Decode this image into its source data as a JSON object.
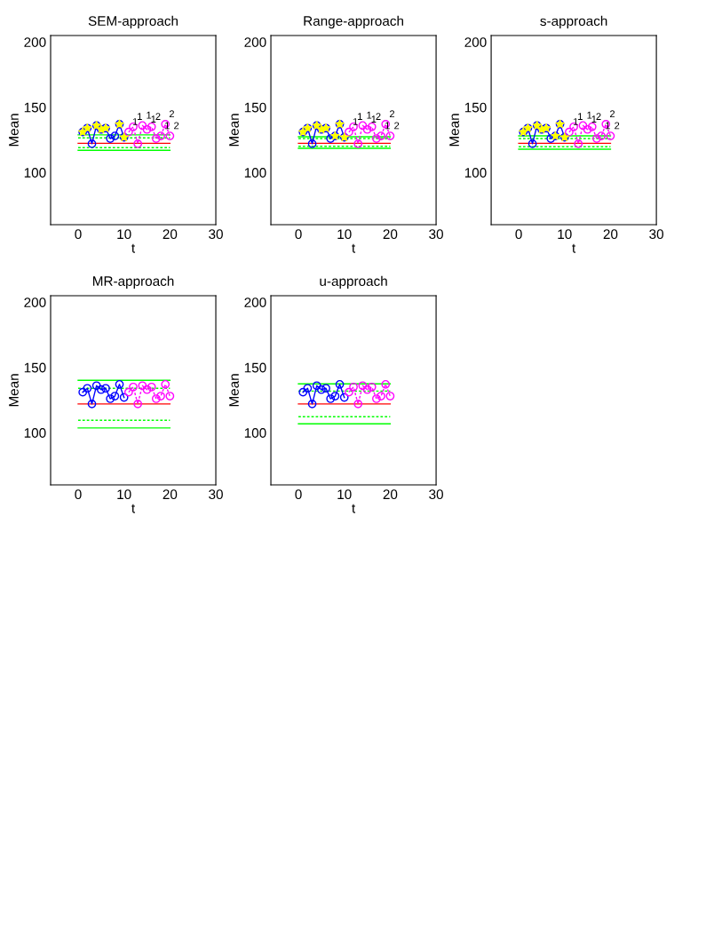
{
  "chart_data": [
    {
      "type": "line",
      "title": "SEM-approach",
      "xlabel": "t",
      "ylabel": "Mean",
      "xlim": [
        -6,
        30
      ],
      "ylim": [
        60,
        205
      ],
      "xticks": [
        0,
        10,
        20,
        30
      ],
      "yticks": [
        100,
        150,
        200
      ],
      "grid": false,
      "legend": false,
      "series": [
        {
          "color": "#00ff00",
          "x": [
            0,
            20
          ],
          "values": [
            128.8,
            128.8
          ],
          "line_style": "solid",
          "marker": "none"
        },
        {
          "color": "#00ff00",
          "x": [
            0,
            20
          ],
          "values": [
            126.5,
            126.5
          ],
          "line_style": "dashed",
          "marker": "none"
        },
        {
          "color": "#ff0000",
          "x": [
            0,
            20
          ],
          "values": [
            122.4,
            122.4
          ],
          "line_style": "solid",
          "marker": "none"
        },
        {
          "color": "#00ff00",
          "x": [
            0,
            20
          ],
          "values": [
            119,
            119
          ],
          "line_style": "dashed",
          "marker": "none"
        },
        {
          "color": "#00ff00",
          "x": [
            0,
            20
          ],
          "values": [
            117,
            117
          ],
          "line_style": "solid",
          "marker": "none"
        },
        {
          "color": "#0000ff",
          "x": [
            1,
            2,
            3,
            4,
            5,
            6,
            7,
            8,
            9,
            10
          ],
          "values": [
            131,
            134,
            122,
            136,
            133,
            134,
            126,
            128,
            137,
            127
          ],
          "line_style": "solid",
          "marker": "circle"
        },
        {
          "color": "#ff00ff",
          "x": [
            11,
            12,
            13,
            14,
            15,
            16,
            17,
            18,
            19,
            20
          ],
          "values": [
            131,
            135,
            122,
            136,
            133,
            135,
            126,
            128,
            137,
            128
          ],
          "line_style": "dashed",
          "marker": "circle"
        },
        {
          "type": "scatter",
          "color": "#ffff00",
          "x": [
            1,
            2,
            4,
            5,
            6,
            9,
            10
          ],
          "values": [
            131,
            134,
            136,
            133,
            134,
            137,
            127
          ],
          "marker": "star"
        }
      ],
      "annotations": [
        {
          "text": "1",
          "x": 11,
          "y": 131
        },
        {
          "text": "1",
          "x": 12,
          "y": 135
        },
        {
          "text": "1",
          "x": 14,
          "y": 136
        },
        {
          "text": "1",
          "x": 15,
          "y": 133
        },
        {
          "text": "2",
          "x": 16,
          "y": 135
        },
        {
          "text": "1",
          "x": 18,
          "y": 128
        },
        {
          "text": "2",
          "x": 19,
          "y": 137
        },
        {
          "text": "2",
          "x": 20,
          "y": 128
        }
      ]
    },
    {
      "type": "line",
      "title": "Range-approach",
      "xlabel": "t",
      "ylabel": "Mean",
      "xlim": [
        -6,
        30
      ],
      "ylim": [
        60,
        205
      ],
      "xticks": [
        0,
        10,
        20,
        30
      ],
      "yticks": [
        100,
        150,
        200
      ],
      "grid": false,
      "legend": false,
      "series": [
        {
          "color": "#00ff00",
          "x": [
            0,
            20
          ],
          "values": [
            127.4,
            127.4
          ],
          "line_style": "solid",
          "marker": "none"
        },
        {
          "color": "#00ff00",
          "x": [
            0,
            20
          ],
          "values": [
            126,
            126
          ],
          "line_style": "dashed",
          "marker": "none"
        },
        {
          "color": "#ff0000",
          "x": [
            0,
            20
          ],
          "values": [
            122.4,
            122.4
          ],
          "line_style": "solid",
          "marker": "none"
        },
        {
          "color": "#00ff00",
          "x": [
            0,
            20
          ],
          "values": [
            120.1,
            120.1
          ],
          "line_style": "dashed",
          "marker": "none"
        },
        {
          "color": "#00ff00",
          "x": [
            0,
            20
          ],
          "values": [
            118.5,
            118.5
          ],
          "line_style": "solid",
          "marker": "none"
        },
        {
          "color": "#0000ff",
          "x": [
            1,
            2,
            3,
            4,
            5,
            6,
            7,
            8,
            9,
            10
          ],
          "values": [
            131,
            134,
            122,
            136,
            133,
            134,
            126,
            128,
            137,
            127
          ],
          "line_style": "solid",
          "marker": "circle"
        },
        {
          "color": "#ff00ff",
          "x": [
            11,
            12,
            13,
            14,
            15,
            16,
            17,
            18,
            19,
            20
          ],
          "values": [
            131,
            135,
            122,
            136,
            133,
            135,
            126,
            128,
            137,
            128
          ],
          "line_style": "dashed",
          "marker": "circle"
        },
        {
          "type": "scatter",
          "color": "#ffff00",
          "x": [
            1,
            2,
            4,
            5,
            6,
            8,
            9,
            10
          ],
          "values": [
            131,
            134,
            136,
            133,
            134,
            128,
            137,
            127
          ],
          "marker": "star"
        }
      ],
      "annotations": [
        {
          "text": "1",
          "x": 11,
          "y": 131
        },
        {
          "text": "1",
          "x": 12,
          "y": 135
        },
        {
          "text": "1",
          "x": 14,
          "y": 136
        },
        {
          "text": "1",
          "x": 15,
          "y": 133
        },
        {
          "text": "2",
          "x": 16,
          "y": 135
        },
        {
          "text": "1",
          "x": 18,
          "y": 128
        },
        {
          "text": "2",
          "x": 19,
          "y": 137
        },
        {
          "text": "2",
          "x": 20,
          "y": 128
        }
      ]
    },
    {
      "type": "line",
      "title": "s-approach",
      "xlabel": "t",
      "ylabel": "Mean",
      "xlim": [
        -6,
        30
      ],
      "ylim": [
        60,
        205
      ],
      "xticks": [
        0,
        10,
        20,
        30
      ],
      "yticks": [
        100,
        150,
        200
      ],
      "grid": false,
      "legend": false,
      "series": [
        {
          "color": "#00ff00",
          "x": [
            0,
            20
          ],
          "values": [
            128.1,
            128.1
          ],
          "line_style": "solid",
          "marker": "none"
        },
        {
          "color": "#00ff00",
          "x": [
            0,
            20
          ],
          "values": [
            126,
            126
          ],
          "line_style": "dashed",
          "marker": "none"
        },
        {
          "color": "#ff0000",
          "x": [
            0,
            20
          ],
          "values": [
            122.4,
            122.4
          ],
          "line_style": "solid",
          "marker": "none"
        },
        {
          "color": "#00ff00",
          "x": [
            0,
            20
          ],
          "values": [
            119.7,
            119.7
          ],
          "line_style": "dashed",
          "marker": "none"
        },
        {
          "color": "#00ff00",
          "x": [
            0,
            20
          ],
          "values": [
            117.9,
            117.9
          ],
          "line_style": "solid",
          "marker": "none"
        },
        {
          "color": "#0000ff",
          "x": [
            1,
            2,
            3,
            4,
            5,
            6,
            7,
            8,
            9,
            10
          ],
          "values": [
            131,
            134,
            122,
            136,
            133,
            134,
            126,
            128,
            137,
            127
          ],
          "line_style": "solid",
          "marker": "circle"
        },
        {
          "color": "#ff00ff",
          "x": [
            11,
            12,
            13,
            14,
            15,
            16,
            17,
            18,
            19,
            20
          ],
          "values": [
            131,
            135,
            122,
            136,
            133,
            135,
            126,
            128,
            137,
            128
          ],
          "line_style": "dashed",
          "marker": "circle"
        },
        {
          "type": "scatter",
          "color": "#ffff00",
          "x": [
            1,
            2,
            4,
            5,
            6,
            8,
            9,
            10
          ],
          "values": [
            131,
            134,
            136,
            133,
            134,
            128,
            137,
            127
          ],
          "marker": "star"
        }
      ],
      "annotations": [
        {
          "text": "1",
          "x": 11,
          "y": 131
        },
        {
          "text": "1",
          "x": 12,
          "y": 135
        },
        {
          "text": "1",
          "x": 14,
          "y": 136
        },
        {
          "text": "1",
          "x": 15,
          "y": 133
        },
        {
          "text": "2",
          "x": 16,
          "y": 135
        },
        {
          "text": "1",
          "x": 18,
          "y": 128
        },
        {
          "text": "2",
          "x": 19,
          "y": 137
        },
        {
          "text": "2",
          "x": 20,
          "y": 128
        }
      ]
    },
    {
      "type": "line",
      "title": "MR-approach",
      "xlabel": "t",
      "ylabel": "Mean",
      "xlim": [
        -6,
        30
      ],
      "ylim": [
        60,
        205
      ],
      "xticks": [
        0,
        10,
        20,
        30
      ],
      "yticks": [
        100,
        150,
        200
      ],
      "grid": false,
      "legend": false,
      "series": [
        {
          "color": "#00ff00",
          "x": [
            0,
            20
          ],
          "values": [
            140.1,
            140.1
          ],
          "line_style": "solid",
          "marker": "none"
        },
        {
          "color": "#00ff00",
          "x": [
            0,
            20
          ],
          "values": [
            134,
            134
          ],
          "line_style": "dashed",
          "marker": "none"
        },
        {
          "color": "#ff0000",
          "x": [
            0,
            20
          ],
          "values": [
            122,
            122
          ],
          "line_style": "solid",
          "marker": "none"
        },
        {
          "color": "#00ff00",
          "x": [
            0,
            20
          ],
          "values": [
            109.5,
            109.5
          ],
          "line_style": "dashed",
          "marker": "none"
        },
        {
          "color": "#00ff00",
          "x": [
            0,
            20
          ],
          "values": [
            103.6,
            103.6
          ],
          "line_style": "solid",
          "marker": "none"
        },
        {
          "color": "#0000ff",
          "x": [
            1,
            2,
            3,
            4,
            5,
            6,
            7,
            8,
            9,
            10
          ],
          "values": [
            131,
            134,
            122,
            136,
            133,
            134,
            126,
            128,
            137,
            127
          ],
          "line_style": "solid",
          "marker": "circle"
        },
        {
          "color": "#ff00ff",
          "x": [
            11,
            12,
            13,
            14,
            15,
            16,
            17,
            18,
            19,
            20
          ],
          "values": [
            131,
            135,
            122,
            136,
            133,
            135,
            126,
            128,
            137,
            128
          ],
          "line_style": "dashed",
          "marker": "circle"
        }
      ]
    },
    {
      "type": "line",
      "title": "u-approach",
      "xlabel": "t",
      "ylabel": "Mean",
      "xlim": [
        -6,
        30
      ],
      "ylim": [
        60,
        205
      ],
      "xticks": [
        0,
        10,
        20,
        30
      ],
      "yticks": [
        100,
        150,
        200
      ],
      "grid": false,
      "legend": false,
      "series": [
        {
          "color": "#00ff00",
          "x": [
            0,
            20
          ],
          "values": [
            137.4,
            137.4
          ],
          "line_style": "solid",
          "marker": "none"
        },
        {
          "color": "#00ff00",
          "x": [
            0,
            20
          ],
          "values": [
            131.9,
            131.9
          ],
          "line_style": "dashed",
          "marker": "none"
        },
        {
          "color": "#ff0000",
          "x": [
            0,
            20
          ],
          "values": [
            122,
            122
          ],
          "line_style": "solid",
          "marker": "none"
        },
        {
          "color": "#00ff00",
          "x": [
            0,
            20
          ],
          "values": [
            112.2,
            112.2
          ],
          "line_style": "dashed",
          "marker": "none"
        },
        {
          "color": "#00ff00",
          "x": [
            0,
            20
          ],
          "values": [
            106.8,
            106.8
          ],
          "line_style": "solid",
          "marker": "none"
        },
        {
          "color": "#0000ff",
          "x": [
            1,
            2,
            3,
            4,
            5,
            6,
            7,
            8,
            9,
            10
          ],
          "values": [
            131,
            134,
            122,
            136,
            133,
            134,
            126,
            128,
            137,
            127
          ],
          "line_style": "solid",
          "marker": "circle"
        },
        {
          "color": "#ff00ff",
          "x": [
            11,
            12,
            13,
            14,
            15,
            16,
            17,
            18,
            19,
            20
          ],
          "values": [
            131,
            135,
            122,
            136,
            133,
            135,
            126,
            128,
            137,
            128
          ],
          "line_style": "dashed",
          "marker": "circle"
        }
      ]
    }
  ]
}
